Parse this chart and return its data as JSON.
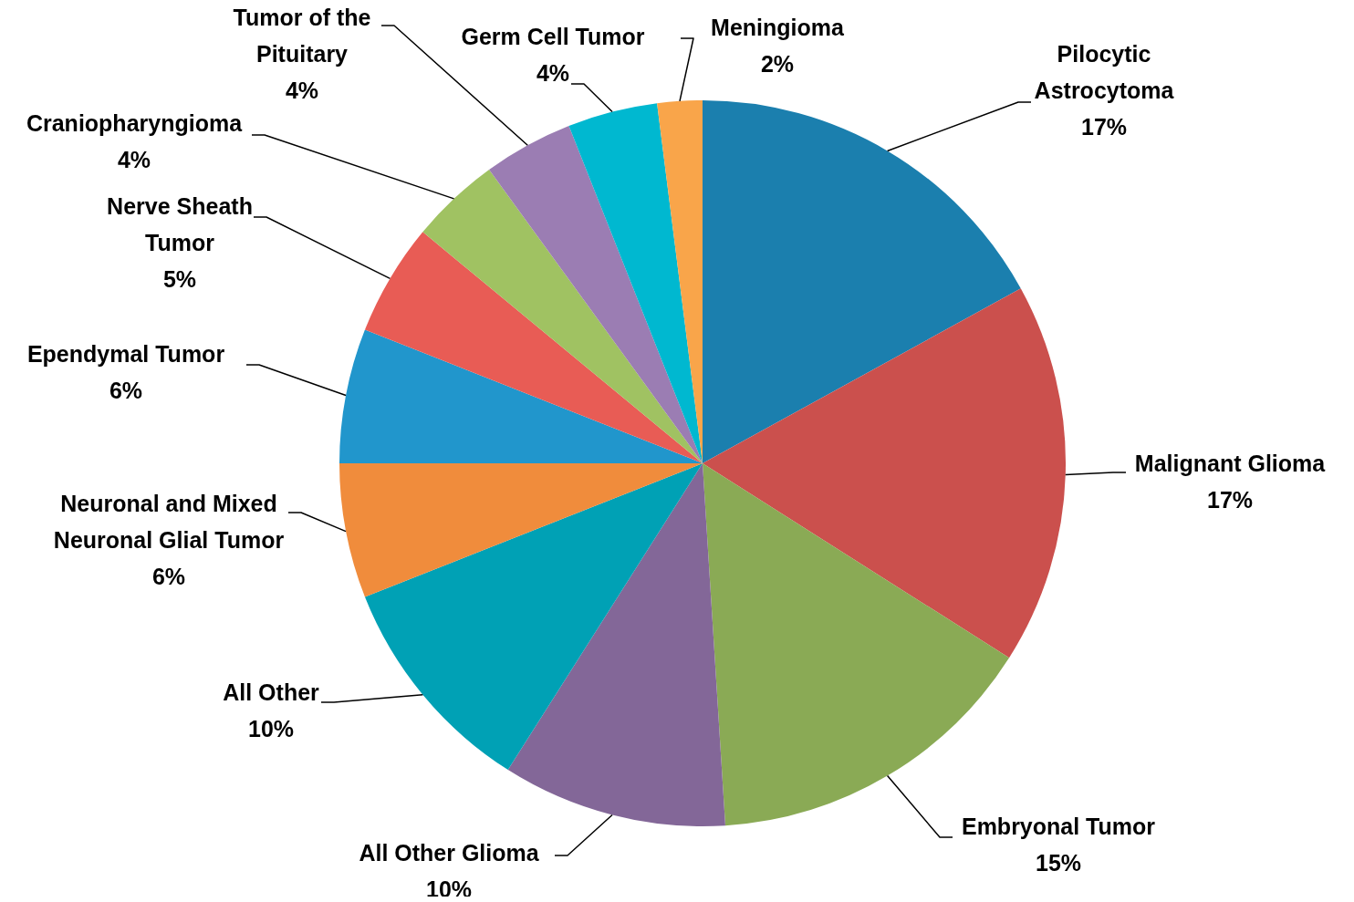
{
  "chart_data": {
    "type": "pie",
    "categories": [
      "Pilocytic Astrocytoma",
      "Malignant Glioma",
      "Embryonal Tumor",
      "All Other Glioma",
      "All Other",
      "Neuronal and Mixed Neuronal Glial Tumor",
      "Ependymal Tumor",
      "Nerve Sheath Tumor",
      "Craniopharyngioma",
      "Tumor of the Pituitary",
      "Germ Cell Tumor",
      "Meningioma"
    ],
    "values": [
      17,
      17,
      15,
      10,
      10,
      6,
      6,
      5,
      4,
      4,
      4,
      2
    ],
    "colors": [
      "#1b7fae",
      "#cb504d",
      "#8aaa55",
      "#836798",
      "#00a1b5",
      "#f08c3c",
      "#2196cc",
      "#e85c55",
      "#a0c262",
      "#9b7db3",
      "#00b8d0",
      "#f9a54a"
    ],
    "value_labels": [
      "17%",
      "17%",
      "15%",
      "10%",
      "10%",
      "6%",
      "6%",
      "5%",
      "4%",
      "4%",
      "4%",
      "2%"
    ]
  }
}
